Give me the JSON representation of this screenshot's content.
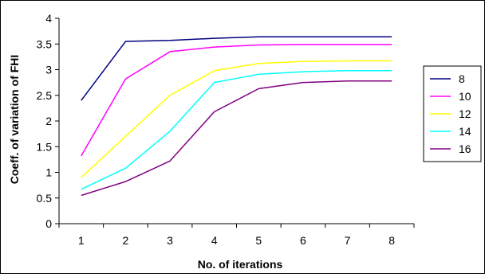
{
  "chart_data": {
    "type": "line",
    "title": "",
    "xlabel": "No. of iterations",
    "ylabel": "Coeff. of variation of FHI",
    "x": [
      1,
      2,
      3,
      4,
      5,
      6,
      7,
      8
    ],
    "xlim": [
      0.5,
      8.5
    ],
    "ylim": [
      0,
      4
    ],
    "yticks": [
      0,
      0.5,
      1,
      1.5,
      2,
      2.5,
      3,
      3.5,
      4
    ],
    "grid": false,
    "legend_position": "right",
    "series": [
      {
        "name": "8",
        "color": "#000080",
        "values": [
          2.4,
          3.55,
          3.57,
          3.61,
          3.64,
          3.64,
          3.64,
          3.64
        ]
      },
      {
        "name": "10",
        "color": "#ff00ff",
        "values": [
          1.32,
          2.82,
          3.35,
          3.44,
          3.48,
          3.49,
          3.49,
          3.49
        ]
      },
      {
        "name": "12",
        "color": "#ffff00",
        "values": [
          0.9,
          1.7,
          2.5,
          2.98,
          3.12,
          3.16,
          3.17,
          3.17
        ]
      },
      {
        "name": "14",
        "color": "#00ffff",
        "values": [
          0.67,
          1.08,
          1.8,
          2.75,
          2.91,
          2.96,
          2.98,
          2.98
        ]
      },
      {
        "name": "16",
        "color": "#800080",
        "values": [
          0.55,
          0.82,
          1.22,
          2.18,
          2.63,
          2.75,
          2.78,
          2.78
        ]
      }
    ]
  }
}
